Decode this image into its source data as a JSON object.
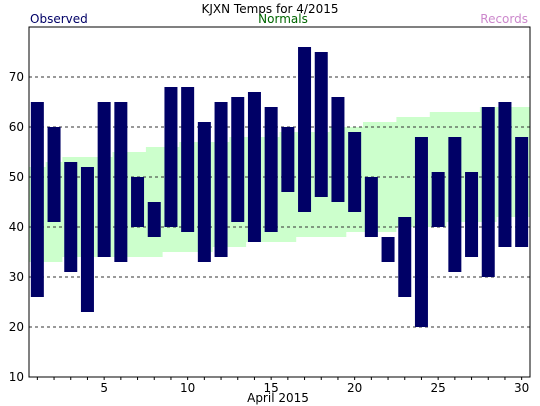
{
  "chart_data": {
    "type": "bar",
    "title": "KJXN Temps for 4/2015",
    "xlabel": "April 2015",
    "ylabel": "",
    "legend": {
      "observed": "Observed",
      "normals": "Normals",
      "records": "Records",
      "placement": "top"
    },
    "colors": {
      "observed": "#000066",
      "normals_fill": "#ccffcc",
      "normals_text": "#006600",
      "records_text": "#cc88cc",
      "grid": "#333333"
    },
    "ylim": [
      10,
      80
    ],
    "yticks": [
      "10",
      "20",
      "30",
      "40",
      "50",
      "60",
      "70"
    ],
    "xlim": [
      0.5,
      30.5
    ],
    "xticks": [
      "5",
      "10",
      "15",
      "20",
      "25",
      "30"
    ],
    "grid": "horizontal dashed",
    "days": [
      1,
      2,
      3,
      4,
      5,
      6,
      7,
      8,
      9,
      10,
      11,
      12,
      13,
      14,
      15,
      16,
      17,
      18,
      19,
      20,
      21,
      22,
      23,
      24,
      25,
      26,
      27,
      28,
      29,
      30
    ],
    "series": [
      {
        "name": "Observed",
        "kind": "range",
        "high": [
          65,
          60,
          53,
          52,
          65,
          65,
          50,
          45,
          68,
          68,
          61,
          65,
          66,
          67,
          64,
          60,
          76,
          75,
          66,
          59,
          50,
          38,
          42,
          58,
          51,
          58,
          51,
          64,
          65,
          58
        ],
        "low": [
          26,
          41,
          31,
          23,
          34,
          33,
          40,
          38,
          40,
          39,
          33,
          34,
          41,
          37,
          39,
          47,
          43,
          46,
          45,
          43,
          38,
          33,
          26,
          20,
          40,
          31,
          34,
          30,
          36,
          36
        ]
      },
      {
        "name": "Normals",
        "kind": "band",
        "high": [
          52,
          53,
          54,
          54,
          54,
          55,
          55,
          56,
          56,
          57,
          57,
          57,
          58,
          58,
          58,
          59,
          59,
          59,
          60,
          60,
          61,
          61,
          62,
          62,
          63,
          63,
          63,
          64,
          64,
          64
        ],
        "low": [
          33,
          33,
          34,
          34,
          34,
          34,
          34,
          34,
          35,
          35,
          35,
          36,
          36,
          37,
          37,
          37,
          38,
          38,
          38,
          39,
          39,
          39,
          40,
          40,
          40,
          41,
          41,
          41,
          42,
          42
        ]
      }
    ]
  }
}
